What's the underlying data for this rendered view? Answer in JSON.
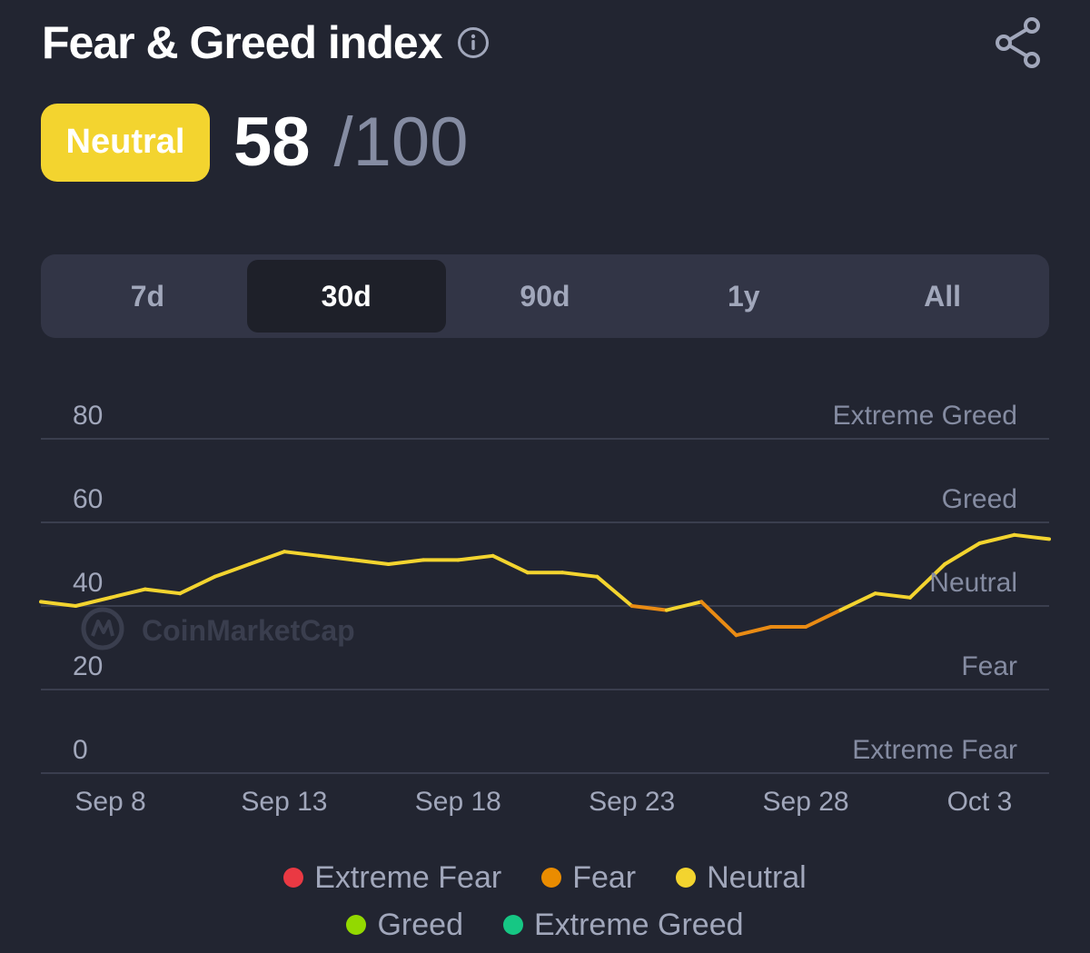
{
  "header": {
    "title": "Fear & Greed index",
    "info_icon": "info-icon",
    "share_icon": "share-icon"
  },
  "score": {
    "label": "Neutral",
    "value": "58",
    "max": "/100",
    "badge_color": "#f3d42f"
  },
  "tabs": [
    {
      "label": "7d",
      "active": false
    },
    {
      "label": "30d",
      "active": true
    },
    {
      "label": "90d",
      "active": false
    },
    {
      "label": "1y",
      "active": false
    },
    {
      "label": "All",
      "active": false
    }
  ],
  "watermark": "CoinMarketCap",
  "chart_data": {
    "type": "line",
    "ylim": [
      0,
      80
    ],
    "yticks": [
      "80",
      "60",
      "40",
      "20",
      "0"
    ],
    "zone_labels": [
      "Extreme Greed",
      "Greed",
      "Neutral",
      "Fear",
      "Extreme Fear"
    ],
    "xticks": [
      {
        "label": "Sep 8",
        "x": 2
      },
      {
        "label": "Sep 13",
        "x": 7
      },
      {
        "label": "Sep 18",
        "x": 12
      },
      {
        "label": "Sep 23",
        "x": 17
      },
      {
        "label": "Sep 28",
        "x": 22
      },
      {
        "label": "Oct 3",
        "x": 27
      }
    ],
    "grid": true,
    "series": [
      {
        "x": [
          0,
          1,
          2,
          3,
          4,
          5,
          6,
          7,
          8,
          9,
          10,
          11,
          12,
          13,
          14,
          15,
          16,
          17,
          18,
          19,
          20,
          21,
          22,
          23,
          24,
          25,
          26,
          27,
          28,
          29
        ],
        "values": [
          41,
          40,
          42,
          44,
          43,
          47,
          50,
          53,
          52,
          51,
          50,
          51,
          51,
          52,
          48,
          48,
          47,
          40,
          39,
          41,
          33,
          35,
          35,
          39,
          43,
          42,
          50,
          55,
          57,
          56
        ]
      }
    ],
    "colors": {
      "neutral": "#f3d42f",
      "fear": "#e98b14",
      "grid": "#3a3e4e",
      "tick": "#a1a7bb",
      "zone": "#858ca2"
    }
  },
  "legend": [
    {
      "label": "Extreme Fear",
      "color": "#ea3943"
    },
    {
      "label": "Fear",
      "color": "#ea8c00"
    },
    {
      "label": "Neutral",
      "color": "#f3d42f"
    },
    {
      "label": "Greed",
      "color": "#93d900"
    },
    {
      "label": "Extreme Greed",
      "color": "#16c784"
    }
  ]
}
